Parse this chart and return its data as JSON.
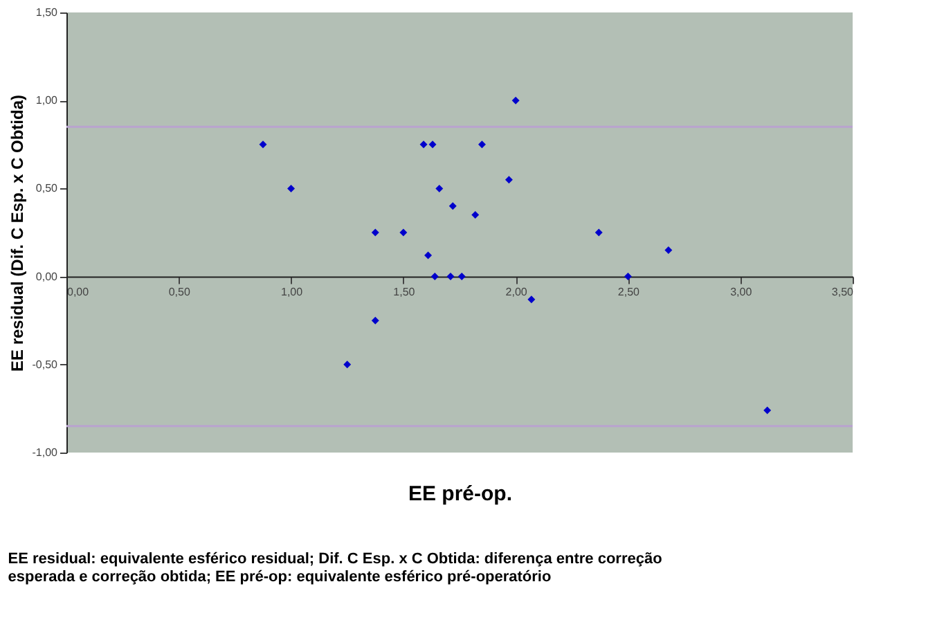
{
  "chart_data": {
    "type": "scatter",
    "xlabel": "EE pré-op.",
    "ylabel": "EE residual (Dif. C Esp. x C Obtida)",
    "annotations": [
      "EE residual: equivalente esférico residual; Dif. C Esp. x C Obtida: diferença entre correção esperada e correção obtida; EE pré-op: equivalente esférico pré-operatório"
    ],
    "series": [
      {
        "color": "#0000cc",
        "x": [
          0.875,
          1.0,
          1.25,
          1.375,
          1.375,
          1.5,
          1.59,
          1.61,
          1.63,
          1.64,
          1.66,
          1.71,
          1.72,
          1.76,
          1.82,
          1.85,
          1.97,
          2.0,
          2.07,
          2.37,
          2.5,
          2.68,
          3.12
        ],
        "values": [
          0.75,
          0.5,
          -0.5,
          0.25,
          -0.25,
          0.25,
          0.75,
          0.12,
          0.75,
          0.0,
          0.5,
          0.0,
          0.4,
          0.0,
          0.35,
          0.75,
          0.55,
          1.0,
          -0.13,
          0.25,
          0.0,
          0.15,
          -0.76
        ]
      }
    ],
    "xlim": [
      0,
      3.5
    ],
    "xticks": [
      {
        "value": 0,
        "label": "0,00"
      },
      {
        "value": 0.5,
        "label": "0,50"
      },
      {
        "value": 1,
        "label": "1,00"
      },
      {
        "value": 1.5,
        "label": "1,50"
      },
      {
        "value": 2,
        "label": "2,00"
      },
      {
        "value": 2.5,
        "label": "2,50"
      },
      {
        "value": 3,
        "label": "3,00"
      },
      {
        "value": 3.5,
        "label": "3,50"
      }
    ],
    "ylim": [
      -1,
      1.5
    ],
    "yticks": [
      {
        "value": -1,
        "label": "-1,00"
      },
      {
        "value": -0.5,
        "label": "-0,50"
      },
      {
        "value": 0,
        "label": "0,00"
      },
      {
        "value": 0.5,
        "label": "0,50"
      },
      {
        "value": 1,
        "label": "1,00"
      },
      {
        "value": 1.5,
        "label": "1,50"
      }
    ],
    "ref_lines": [
      {
        "axis": "y",
        "value": 0.85,
        "color": "#b9a3cf"
      },
      {
        "axis": "y",
        "value": -0.85,
        "color": "#b9a3cf"
      }
    ],
    "grid": false,
    "marker": "diamond"
  }
}
